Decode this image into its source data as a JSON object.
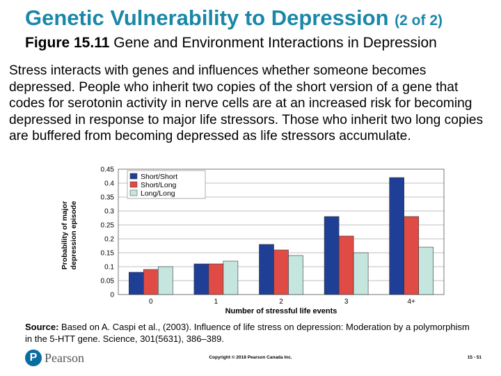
{
  "slide": {
    "title": "Genetic Vulnerability to Depression",
    "title_suffix": "(2 of 2)",
    "figure_label": "Figure 15.11",
    "figure_caption": "Gene and Environment Interactions in Depression",
    "body": "Stress interacts with genes and influences whether someone becomes depressed. People who inherit two copies of the short version of a gene that codes for serotonin activity in nerve cells are at an increased risk for becoming depressed in response to major life stressors. Those who inherit two long copies are buffered from becoming depressed as life stressors accumulate.",
    "source_label": "Source:",
    "source_text": "Based on A. Caspi et al., (2003). Influence of life stress on depression: Moderation by a polymorphism in the 5-HTT gene. Science, 301(5631), 386–389.",
    "logo_letter": "P",
    "logo_text": "Pearson",
    "copyright": "Copyright © 2018 Pearson Canada Inc.",
    "page_number": "15 - 51",
    "title_color": "#1a87a8"
  },
  "chart_data": {
    "type": "bar",
    "title": "",
    "xlabel": "Number of stressful life events",
    "ylabel_lines": [
      "Probability of major",
      "depression episode"
    ],
    "categories": [
      "0",
      "1",
      "2",
      "3",
      "4+"
    ],
    "ylim": [
      0,
      0.45
    ],
    "yticks": [
      "0",
      "0.05",
      "0.1",
      "0.15",
      "0.2",
      "0.25",
      "0.3",
      "0.35",
      "0.4",
      "0.45"
    ],
    "grid": true,
    "legend_position": "top-left",
    "series": [
      {
        "name": "Short/Short",
        "color": "#1f3f96",
        "values": [
          0.08,
          0.11,
          0.18,
          0.28,
          0.42
        ]
      },
      {
        "name": "Short/Long",
        "color": "#e04b45",
        "values": [
          0.09,
          0.11,
          0.16,
          0.21,
          0.28
        ]
      },
      {
        "name": "Long/Long",
        "color": "#c5e6df",
        "values": [
          0.1,
          0.12,
          0.14,
          0.15,
          0.17
        ]
      }
    ]
  }
}
